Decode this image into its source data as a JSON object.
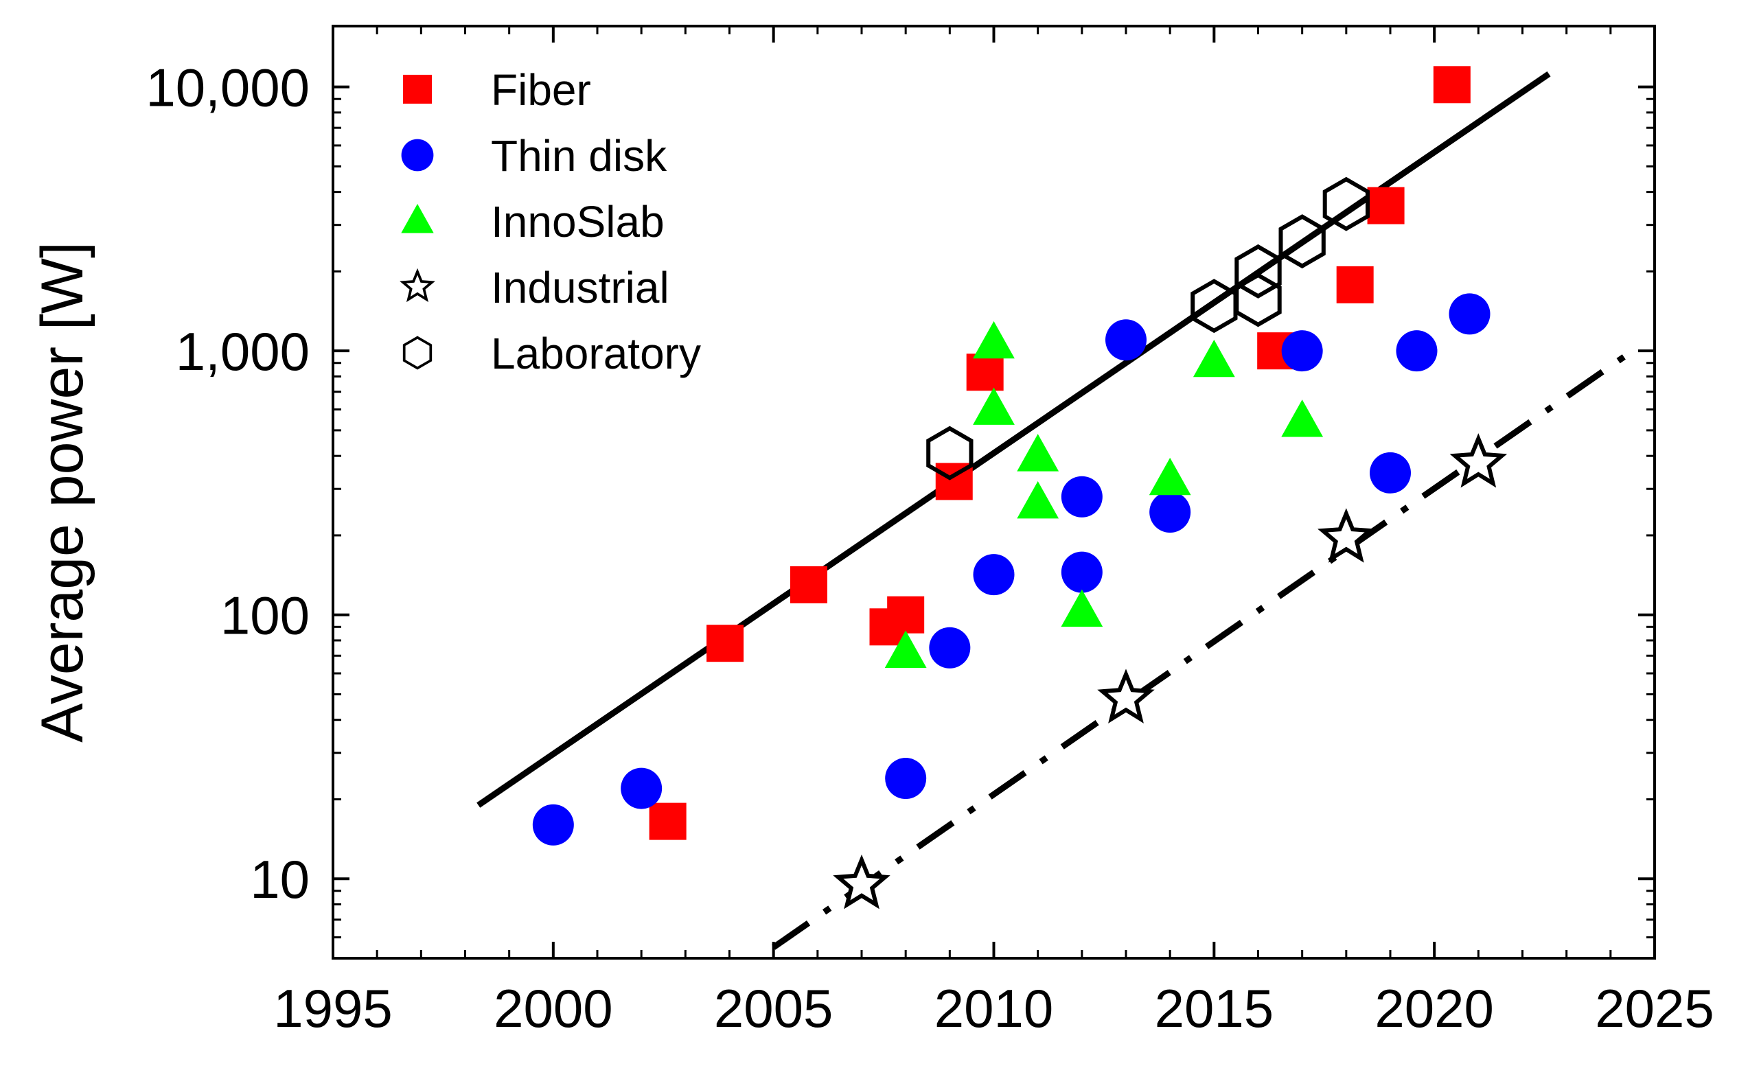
{
  "chart_data": {
    "type": "scatter",
    "title": "",
    "xlabel": "",
    "ylabel": "Average power  [W]",
    "xlim": [
      1995,
      2025
    ],
    "ylim": [
      5,
      17000
    ],
    "yscale": "log",
    "x_ticks": [
      1995,
      2000,
      2005,
      2010,
      2015,
      2020,
      2025
    ],
    "x_tick_labels": [
      "1995",
      "2000",
      "2005",
      "2010",
      "2015",
      "2020",
      "2025"
    ],
    "y_ticks": [
      10,
      100,
      1000,
      10000
    ],
    "y_tick_labels": [
      "10",
      "100",
      "1,000",
      "10,000"
    ],
    "legend_position": "top-left",
    "series": [
      {
        "name": "Fiber",
        "marker": "square",
        "color": "#ff0000",
        "points": [
          [
            2002.6,
            16.5
          ],
          [
            2003.9,
            78
          ],
          [
            2005.8,
            130
          ],
          [
            2007.6,
            90
          ],
          [
            2008.0,
            100
          ],
          [
            2009.8,
            830
          ],
          [
            2009.1,
            320
          ],
          [
            2016.4,
            1000
          ],
          [
            2018.2,
            1780
          ],
          [
            2018.9,
            3550
          ],
          [
            2020.4,
            10200
          ]
        ]
      },
      {
        "name": "Thin disk",
        "marker": "circle",
        "color": "#0000ff",
        "points": [
          [
            2000.0,
            16
          ],
          [
            2002.0,
            22
          ],
          [
            2008.0,
            24
          ],
          [
            2009.0,
            75
          ],
          [
            2010.0,
            142
          ],
          [
            2012.0,
            145
          ],
          [
            2012.0,
            280
          ],
          [
            2013.0,
            1100
          ],
          [
            2014.0,
            245
          ],
          [
            2017.0,
            1000
          ],
          [
            2019.0,
            345
          ],
          [
            2019.6,
            1000
          ],
          [
            2020.8,
            1380
          ]
        ]
      },
      {
        "name": "InnoSlab",
        "marker": "triangle",
        "color": "#00ff00",
        "points": [
          [
            2008.0,
            72
          ],
          [
            2010.0,
            1070
          ],
          [
            2010.0,
            600
          ],
          [
            2011.0,
            400
          ],
          [
            2011.0,
            265
          ],
          [
            2012.0,
            103
          ],
          [
            2014.0,
            325
          ],
          [
            2015.0,
            910
          ],
          [
            2017.0,
            540
          ]
        ]
      },
      {
        "name": "Industrial",
        "marker": "star",
        "color": "#000000",
        "points": [
          [
            2007.0,
            9.5
          ],
          [
            2013.0,
            48
          ],
          [
            2018.0,
            195
          ],
          [
            2021.0,
            375
          ]
        ]
      },
      {
        "name": "Laboratory",
        "marker": "hexagon",
        "color": "#000000",
        "points": [
          [
            2009.0,
            410
          ],
          [
            2015.0,
            1480
          ],
          [
            2016.0,
            1560
          ],
          [
            2016.0,
            2000
          ],
          [
            2017.0,
            2600
          ],
          [
            2018.0,
            3600
          ]
        ]
      }
    ],
    "trend_lines": [
      {
        "name": "laboratory-trend",
        "style": "solid",
        "color": "#000000",
        "points": [
          [
            1998.3,
            19
          ],
          [
            2022.6,
            11200
          ]
        ]
      },
      {
        "name": "industrial-trend",
        "style": "dash-dot",
        "color": "#000000",
        "points": [
          [
            2005.0,
            5.5
          ],
          [
            2024.5,
            1000
          ]
        ]
      }
    ]
  }
}
